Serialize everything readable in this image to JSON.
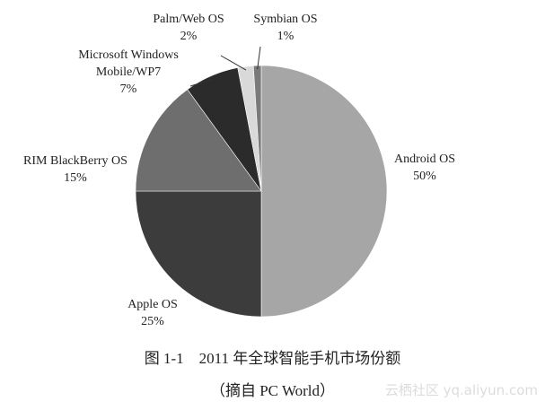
{
  "chart_data": {
    "type": "pie",
    "title": "",
    "slices": [
      {
        "label_lines": [
          "Android OS"
        ],
        "percent_label": "50%",
        "value": 50,
        "color": "#a6a6a6"
      },
      {
        "label_lines": [
          "Apple  OS"
        ],
        "percent_label": "25%",
        "value": 25,
        "color": "#3c3c3c"
      },
      {
        "label_lines": [
          "RIM BlackBerry OS"
        ],
        "percent_label": "15%",
        "value": 15,
        "color": "#6e6e6e"
      },
      {
        "label_lines": [
          "Microsoft Windows",
          "Mobile/WP7"
        ],
        "percent_label": "7%",
        "value": 7,
        "color": "#2b2b2b"
      },
      {
        "label_lines": [
          "Palm/Web OS"
        ],
        "percent_label": "2%",
        "value": 2,
        "color": "#d9d9d9"
      },
      {
        "label_lines": [
          "Symbian OS"
        ],
        "percent_label": "1%",
        "value": 1,
        "color": "#7a7a7a"
      }
    ],
    "start_angle_deg": 0,
    "direction": "clockwise",
    "legend": "none"
  },
  "caption": {
    "title": "图 1-1　2011 年全球智能手机市场份额",
    "source": "（摘自 PC World）"
  },
  "watermark": {
    "text": "云栖社区 yq.aliyun.com"
  }
}
